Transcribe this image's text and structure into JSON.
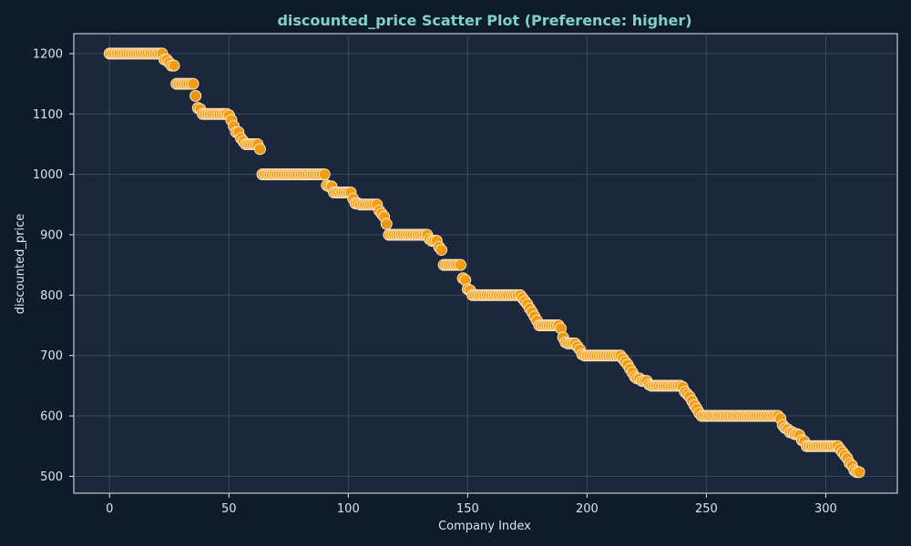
{
  "chart_data": {
    "type": "scatter",
    "title": "discounted_price Scatter Plot (Preference: higher)",
    "xlabel": "Company Index",
    "ylabel": "discounted_price",
    "xlim": [
      -15,
      330
    ],
    "ylim": [
      472,
      1233
    ],
    "xticks": [
      "0",
      "50",
      "100",
      "150",
      "200",
      "250",
      "300"
    ],
    "yticks": [
      "500",
      "600",
      "700",
      "800",
      "900",
      "1000",
      "1100",
      "1200"
    ],
    "grid": true,
    "legend": "none",
    "colors": {
      "background": "#0f1b2b",
      "plot_bg": "#1c273c",
      "marker_fill": "#f39c12",
      "marker_edge": "#fde7c2",
      "grid": "#4a5568",
      "title": "#7fd1c9",
      "text": "#dbe3ee"
    },
    "segments": [
      [
        0,
        22,
        1200
      ],
      [
        23,
        23,
        1190
      ],
      [
        24,
        24,
        1190
      ],
      [
        25,
        25,
        1185
      ],
      [
        26,
        27,
        1180
      ],
      [
        28,
        33,
        1150
      ],
      [
        34,
        35,
        1150
      ],
      [
        36,
        36,
        1130
      ],
      [
        37,
        37,
        1110
      ],
      [
        38,
        38,
        1108
      ],
      [
        39,
        49,
        1100
      ],
      [
        50,
        50,
        1098
      ],
      [
        51,
        51,
        1090
      ],
      [
        52,
        52,
        1080
      ],
      [
        53,
        54,
        1070
      ],
      [
        55,
        55,
        1060
      ],
      [
        56,
        56,
        1055
      ],
      [
        57,
        62,
        1050
      ],
      [
        63,
        63,
        1042
      ],
      [
        64,
        90,
        1000
      ],
      [
        91,
        91,
        982
      ],
      [
        92,
        93,
        980
      ],
      [
        94,
        101,
        970
      ],
      [
        102,
        102,
        960
      ],
      [
        103,
        104,
        952
      ],
      [
        105,
        112,
        950
      ],
      [
        113,
        113,
        940
      ],
      [
        114,
        114,
        935
      ],
      [
        115,
        115,
        930
      ],
      [
        116,
        116,
        918
      ],
      [
        117,
        133,
        900
      ],
      [
        134,
        134,
        893
      ],
      [
        135,
        137,
        890
      ],
      [
        138,
        138,
        880
      ],
      [
        139,
        139,
        875
      ],
      [
        140,
        147,
        850
      ],
      [
        148,
        148,
        828
      ],
      [
        149,
        149,
        825
      ],
      [
        150,
        150,
        810
      ],
      [
        151,
        151,
        808
      ],
      [
        152,
        172,
        800
      ],
      [
        173,
        173,
        795
      ],
      [
        174,
        174,
        790
      ],
      [
        175,
        175,
        785
      ],
      [
        176,
        176,
        778
      ],
      [
        177,
        177,
        772
      ],
      [
        178,
        178,
        765
      ],
      [
        179,
        179,
        758
      ],
      [
        180,
        188,
        750
      ],
      [
        189,
        189,
        745
      ],
      [
        190,
        190,
        730
      ],
      [
        191,
        191,
        722
      ],
      [
        192,
        195,
        720
      ],
      [
        196,
        196,
        715
      ],
      [
        197,
        197,
        710
      ],
      [
        198,
        198,
        702
      ],
      [
        199,
        214,
        700
      ],
      [
        215,
        215,
        695
      ],
      [
        216,
        216,
        690
      ],
      [
        217,
        217,
        685
      ],
      [
        218,
        218,
        678
      ],
      [
        219,
        219,
        672
      ],
      [
        220,
        220,
        665
      ],
      [
        221,
        222,
        662
      ],
      [
        223,
        225,
        658
      ],
      [
        226,
        226,
        652
      ],
      [
        227,
        239,
        650
      ],
      [
        240,
        240,
        648
      ],
      [
        241,
        241,
        640
      ],
      [
        242,
        242,
        636
      ],
      [
        243,
        243,
        632
      ],
      [
        244,
        244,
        625
      ],
      [
        245,
        245,
        618
      ],
      [
        246,
        246,
        612
      ],
      [
        247,
        247,
        605
      ],
      [
        248,
        280,
        600
      ],
      [
        281,
        281,
        596
      ],
      [
        282,
        282,
        585
      ],
      [
        283,
        283,
        580
      ],
      [
        284,
        284,
        578
      ],
      [
        285,
        286,
        573
      ],
      [
        287,
        288,
        570
      ],
      [
        289,
        289,
        568
      ],
      [
        290,
        290,
        560
      ],
      [
        291,
        291,
        558
      ],
      [
        292,
        305,
        550
      ],
      [
        306,
        306,
        545
      ],
      [
        307,
        307,
        540
      ],
      [
        308,
        308,
        535
      ],
      [
        309,
        309,
        530
      ],
      [
        310,
        310,
        522
      ],
      [
        311,
        311,
        518
      ],
      [
        312,
        312,
        510
      ],
      [
        313,
        314,
        507
      ]
    ]
  }
}
